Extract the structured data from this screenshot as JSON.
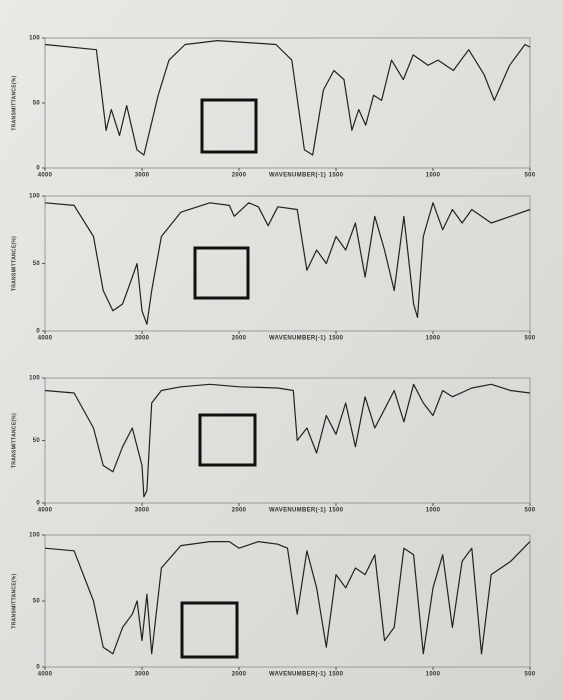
{
  "chart_data": [
    {
      "type": "line",
      "xlabel": "WAVENUMBER(-1)",
      "ylabel": "TRANSMITTANCE(%)",
      "color": "#222222",
      "xlim": [
        4000,
        500
      ],
      "ylim": [
        0,
        100
      ],
      "xticks": [
        4000,
        3000,
        2000,
        1500,
        1000,
        500
      ],
      "yticks": [
        0,
        50,
        100
      ],
      "x": [
        4000,
        3470,
        3370,
        3316,
        3232,
        3158,
        3053,
        2980,
        2833,
        2722,
        2556,
        2222,
        1810,
        1728,
        1663,
        1620,
        1565,
        1511,
        1459,
        1418,
        1383,
        1347,
        1306,
        1265,
        1214,
        1153,
        1102,
        1026,
        974,
        895,
        816,
        737,
        684,
        605,
        526,
        500
      ],
      "values": [
        95,
        91,
        29,
        45,
        25,
        48,
        14,
        10,
        56,
        83,
        95,
        98,
        95,
        83,
        14,
        10,
        60,
        75,
        68,
        29,
        45,
        33,
        56,
        52,
        83,
        68,
        87,
        79,
        83,
        75,
        91,
        72,
        52,
        79,
        95,
        93
      ]
    },
    {
      "type": "line",
      "xlabel": "WAVENUMBER(-1)",
      "ylabel": "TRANSMITTANCE(%)",
      "color": "#222222",
      "xlim": [
        4000,
        500
      ],
      "ylim": [
        0,
        100
      ],
      "xticks": [
        4000,
        3000,
        2000,
        1500,
        1000,
        500
      ],
      "yticks": [
        0,
        50,
        100
      ],
      "x": [
        4000,
        3700,
        3500,
        3400,
        3300,
        3200,
        3150,
        3050,
        3000,
        2950,
        2900,
        2800,
        2600,
        2300,
        2100,
        2050,
        1950,
        1900,
        1850,
        1800,
        1700,
        1650,
        1600,
        1550,
        1500,
        1450,
        1400,
        1350,
        1300,
        1250,
        1200,
        1150,
        1100,
        1080,
        1050,
        1000,
        950,
        900,
        850,
        800,
        700,
        600,
        500
      ],
      "values": [
        95,
        93,
        70,
        30,
        15,
        20,
        30,
        50,
        15,
        5,
        30,
        70,
        88,
        95,
        93,
        85,
        95,
        92,
        78,
        92,
        90,
        45,
        60,
        50,
        70,
        60,
        80,
        40,
        85,
        60,
        30,
        85,
        20,
        10,
        70,
        95,
        75,
        90,
        80,
        90,
        80,
        85,
        90
      ]
    },
    {
      "type": "line",
      "xlabel": "WAVENUMBER(-1)",
      "ylabel": "TRANSMITTANCE(%)",
      "color": "#222222",
      "xlim": [
        4000,
        500
      ],
      "ylim": [
        0,
        100
      ],
      "xticks": [
        4000,
        3000,
        2000,
        1500,
        1000,
        500
      ],
      "yticks": [
        0,
        50,
        100
      ],
      "x": [
        4000,
        3700,
        3500,
        3400,
        3300,
        3200,
        3100,
        3000,
        2980,
        2950,
        2900,
        2800,
        2600,
        2300,
        2000,
        1800,
        1720,
        1700,
        1650,
        1600,
        1550,
        1500,
        1450,
        1400,
        1350,
        1300,
        1250,
        1200,
        1150,
        1100,
        1050,
        1000,
        950,
        900,
        800,
        700,
        600,
        500
      ],
      "values": [
        90,
        88,
        60,
        30,
        25,
        45,
        60,
        30,
        5,
        10,
        80,
        90,
        93,
        95,
        93,
        92,
        90,
        50,
        60,
        40,
        70,
        55,
        80,
        45,
        85,
        60,
        75,
        90,
        65,
        95,
        80,
        70,
        90,
        85,
        92,
        95,
        90,
        88
      ]
    },
    {
      "type": "line",
      "xlabel": "WAVENUMBER(-1)",
      "ylabel": "TRANSMITTANCE(%)",
      "color": "#222222",
      "xlim": [
        4000,
        500
      ],
      "ylim": [
        0,
        100
      ],
      "xticks": [
        4000,
        3000,
        2000,
        1500,
        1000,
        500
      ],
      "yticks": [
        0,
        50,
        100
      ],
      "x": [
        4000,
        3700,
        3500,
        3400,
        3300,
        3200,
        3100,
        3050,
        3000,
        2950,
        2900,
        2800,
        2600,
        2300,
        2100,
        2000,
        1900,
        1800,
        1750,
        1700,
        1650,
        1600,
        1550,
        1500,
        1450,
        1400,
        1350,
        1300,
        1250,
        1200,
        1150,
        1100,
        1050,
        1000,
        950,
        900,
        850,
        800,
        750,
        700,
        600,
        500
      ],
      "values": [
        90,
        88,
        50,
        15,
        10,
        30,
        40,
        50,
        20,
        55,
        10,
        75,
        92,
        95,
        95,
        90,
        95,
        93,
        90,
        40,
        88,
        60,
        15,
        70,
        60,
        75,
        70,
        85,
        20,
        30,
        90,
        85,
        10,
        60,
        85,
        30,
        80,
        90,
        10,
        70,
        80,
        95
      ]
    }
  ]
}
